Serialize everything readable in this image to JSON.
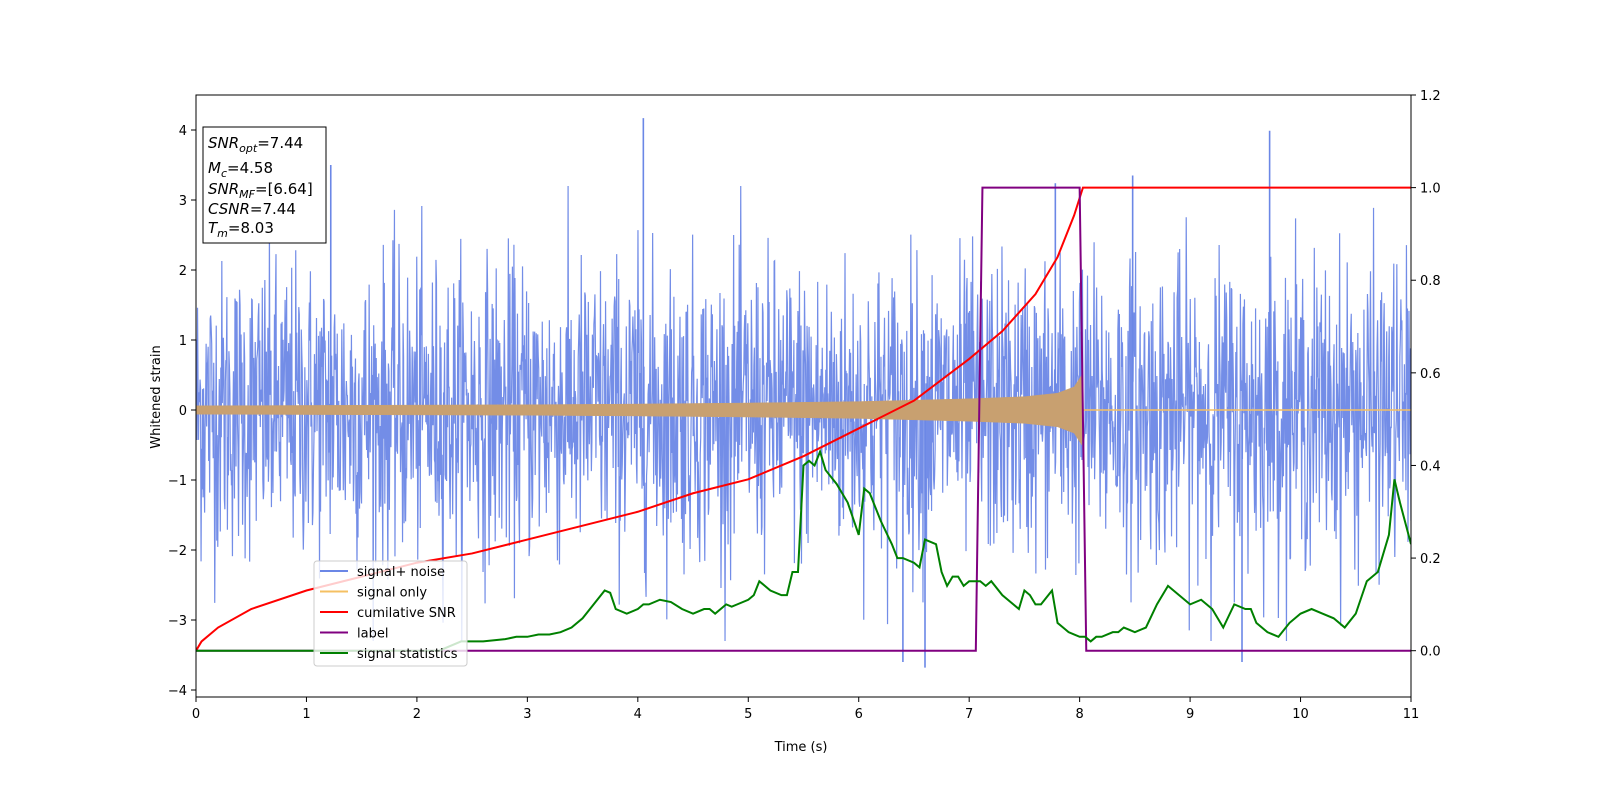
{
  "chart_data": {
    "type": "line",
    "xlabel": "Time (s)",
    "ylabel": "Whitened strain",
    "xlim": [
      0,
      11
    ],
    "ylim_left": [
      -4.1,
      4.5
    ],
    "ylim_right": [
      -0.1,
      1.2
    ],
    "x_ticks": [
      "0",
      "1",
      "2",
      "3",
      "4",
      "5",
      "6",
      "7",
      "8",
      "9",
      "10",
      "11"
    ],
    "y_ticks_left": [
      "4",
      "3",
      "2",
      "1",
      "0",
      "−1",
      "−2",
      "−3",
      "−4"
    ],
    "y_ticks_left_values": [
      4,
      3,
      2,
      1,
      0,
      -1,
      -2,
      -3,
      -4
    ],
    "y_ticks_right": [
      "1.2",
      "1.0",
      "0.8",
      "0.6",
      "0.4",
      "0.2",
      "0.0"
    ],
    "y_ticks_right_values": [
      1.2,
      1.0,
      0.8,
      0.6,
      0.4,
      0.2,
      0.0
    ],
    "legend_position": "lower-left",
    "legend": [
      {
        "label": "signal+ noise",
        "color": "#6b87e6"
      },
      {
        "label": "signal only",
        "color": "#f5c063"
      },
      {
        "label": "cumilative SNR",
        "color": "#ff0000"
      },
      {
        "label": "label",
        "color": "#800080"
      },
      {
        "label": "signal statistics",
        "color": "#008000"
      }
    ],
    "stats_box": [
      {
        "base": "SNR",
        "sub": "opt",
        "rest": "=7.44"
      },
      {
        "base": "M",
        "sub": "c",
        "rest": "=4.58"
      },
      {
        "base": "SNR",
        "sub": "MF",
        "rest": "=[6.64]"
      },
      {
        "base": "CSNR",
        "sub": "",
        "rest": "=7.44"
      },
      {
        "base": "T",
        "sub": "m",
        "rest": "=8.03"
      }
    ],
    "series": [
      {
        "name": "signal+ noise",
        "axis": "left",
        "color": "#6b87e6",
        "noise_sigma": 1.0,
        "x_range": [
          0,
          11
        ],
        "spikes": [
          {
            "x": 4.05,
            "y": 4.17
          },
          {
            "x": 9.72,
            "y": 3.99
          },
          {
            "x": 6.6,
            "y": -3.68
          },
          {
            "x": 6.4,
            "y": -3.6
          },
          {
            "x": 9.47,
            "y": -3.6
          },
          {
            "x": 7.78,
            "y": 3.24
          },
          {
            "x": 8.48,
            "y": 3.35
          },
          {
            "x": 1.22,
            "y": 3.5
          }
        ]
      },
      {
        "name": "signal only",
        "axis": "left",
        "color": "#c8a070",
        "envelope": {
          "x": [
            0,
            1,
            2,
            3,
            4,
            5,
            6,
            7,
            7.5,
            7.8,
            7.95,
            8.02,
            8.03
          ],
          "amp": [
            0.06,
            0.065,
            0.07,
            0.075,
            0.085,
            0.1,
            0.12,
            0.16,
            0.19,
            0.24,
            0.33,
            0.5,
            0.0
          ]
        }
      },
      {
        "name": "cumilative SNR",
        "axis": "right",
        "color": "#ff0000",
        "x": [
          0,
          0.05,
          0.2,
          0.5,
          1,
          1.5,
          2,
          2.5,
          3,
          3.5,
          4,
          4.5,
          5,
          5.5,
          6,
          6.5,
          7,
          7.3,
          7.6,
          7.8,
          7.95,
          8.03,
          8.05,
          11
        ],
        "y": [
          0,
          0.02,
          0.05,
          0.09,
          0.13,
          0.16,
          0.19,
          0.21,
          0.24,
          0.27,
          0.3,
          0.34,
          0.37,
          0.42,
          0.48,
          0.54,
          0.63,
          0.69,
          0.77,
          0.85,
          0.94,
          1.0,
          1.0,
          1.0
        ]
      },
      {
        "name": "label",
        "axis": "right",
        "color": "#800080",
        "x": [
          0,
          7.06,
          7.12,
          8.0,
          8.06,
          11
        ],
        "y": [
          0,
          0,
          1,
          1,
          0,
          0
        ]
      },
      {
        "name": "signal statistics",
        "axis": "right",
        "color": "#008000",
        "x": [
          0,
          2.2,
          2.4,
          2.6,
          2.8,
          2.9,
          3.0,
          3.1,
          3.2,
          3.3,
          3.4,
          3.5,
          3.6,
          3.7,
          3.75,
          3.8,
          3.9,
          4.0,
          4.05,
          4.1,
          4.2,
          4.3,
          4.4,
          4.5,
          4.6,
          4.65,
          4.7,
          4.8,
          4.85,
          4.9,
          5.0,
          5.05,
          5.1,
          5.2,
          5.3,
          5.35,
          5.4,
          5.45,
          5.5,
          5.55,
          5.6,
          5.65,
          5.7,
          5.8,
          5.9,
          6.0,
          6.05,
          6.1,
          6.2,
          6.3,
          6.35,
          6.4,
          6.5,
          6.55,
          6.6,
          6.7,
          6.75,
          6.8,
          6.85,
          6.9,
          6.95,
          7.0,
          7.05,
          7.1,
          7.15,
          7.2,
          7.3,
          7.4,
          7.45,
          7.5,
          7.55,
          7.6,
          7.65,
          7.75,
          7.8,
          7.85,
          7.9,
          8.0,
          8.05,
          8.1,
          8.15,
          8.2,
          8.3,
          8.35,
          8.4,
          8.45,
          8.5,
          8.6,
          8.7,
          8.8,
          8.9,
          9.0,
          9.1,
          9.15,
          9.2,
          9.3,
          9.4,
          9.5,
          9.55,
          9.6,
          9.7,
          9.8,
          9.9,
          10.0,
          10.1,
          10.2,
          10.3,
          10.4,
          10.5,
          10.6,
          10.7,
          10.8,
          10.85,
          10.9,
          11.0
        ],
        "y": [
          0,
          0,
          0.02,
          0.02,
          0.025,
          0.03,
          0.03,
          0.035,
          0.035,
          0.04,
          0.05,
          0.07,
          0.1,
          0.13,
          0.125,
          0.09,
          0.08,
          0.09,
          0.1,
          0.1,
          0.11,
          0.105,
          0.09,
          0.08,
          0.09,
          0.09,
          0.08,
          0.1,
          0.095,
          0.1,
          0.11,
          0.12,
          0.15,
          0.13,
          0.12,
          0.12,
          0.17,
          0.17,
          0.4,
          0.41,
          0.4,
          0.43,
          0.39,
          0.36,
          0.32,
          0.25,
          0.35,
          0.34,
          0.28,
          0.23,
          0.2,
          0.2,
          0.19,
          0.18,
          0.24,
          0.23,
          0.17,
          0.14,
          0.16,
          0.16,
          0.14,
          0.15,
          0.15,
          0.15,
          0.14,
          0.15,
          0.12,
          0.1,
          0.09,
          0.13,
          0.12,
          0.1,
          0.1,
          0.13,
          0.06,
          0.05,
          0.04,
          0.03,
          0.03,
          0.02,
          0.03,
          0.03,
          0.04,
          0.04,
          0.05,
          0.045,
          0.04,
          0.05,
          0.1,
          0.14,
          0.12,
          0.1,
          0.11,
          0.1,
          0.09,
          0.05,
          0.1,
          0.09,
          0.09,
          0.06,
          0.04,
          0.03,
          0.06,
          0.08,
          0.09,
          0.08,
          0.07,
          0.05,
          0.08,
          0.15,
          0.17,
          0.25,
          0.37,
          0.32,
          0.23
        ]
      }
    ]
  }
}
